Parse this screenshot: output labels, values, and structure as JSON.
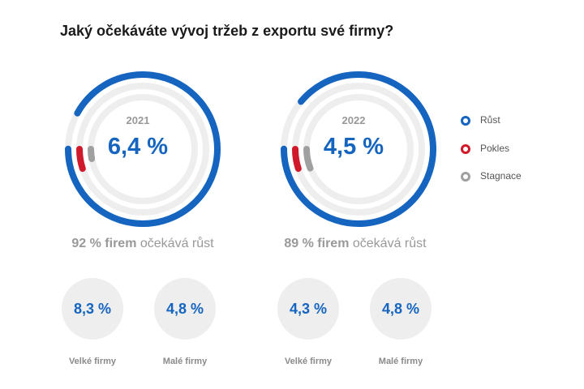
{
  "title": "Jaký očekáváte vývoj tržeb z exportu své firmy?",
  "colors": {
    "growth": "#1565c0",
    "decline": "#d0192b",
    "stagnation": "#a0a0a0",
    "track": "#eeeeee",
    "value": "#1565c0",
    "muted": "#999999"
  },
  "legend": [
    {
      "label": "Růst",
      "color": "#1565c0"
    },
    {
      "label": "Pokles",
      "color": "#d0192b"
    },
    {
      "label": "Stagnace",
      "color": "#a0a0a0"
    }
  ],
  "chart_data": [
    {
      "type": "pie",
      "year_label": "2021",
      "value_label": "6,4 %",
      "shares": {
        "growth": 92,
        "decline": 5,
        "stagnation": 3
      },
      "summary_bold": "92 % firem",
      "summary_rest": " očekává růst",
      "subgroups": [
        {
          "label": "Velké firmy",
          "value": "8,3 %"
        },
        {
          "label": "Malé firmy",
          "value": "4,8 %"
        }
      ]
    },
    {
      "type": "pie",
      "year_label": "2022",
      "value_label": "4,5 %",
      "shares": {
        "growth": 89,
        "decline": 5,
        "stagnation": 6
      },
      "summary_bold": "89 % firem",
      "summary_rest": " očekává růst",
      "subgroups": [
        {
          "label": "Velké firmy",
          "value": "4,3 %"
        },
        {
          "label": "Malé firmy",
          "value": "4,8 %"
        }
      ]
    }
  ]
}
